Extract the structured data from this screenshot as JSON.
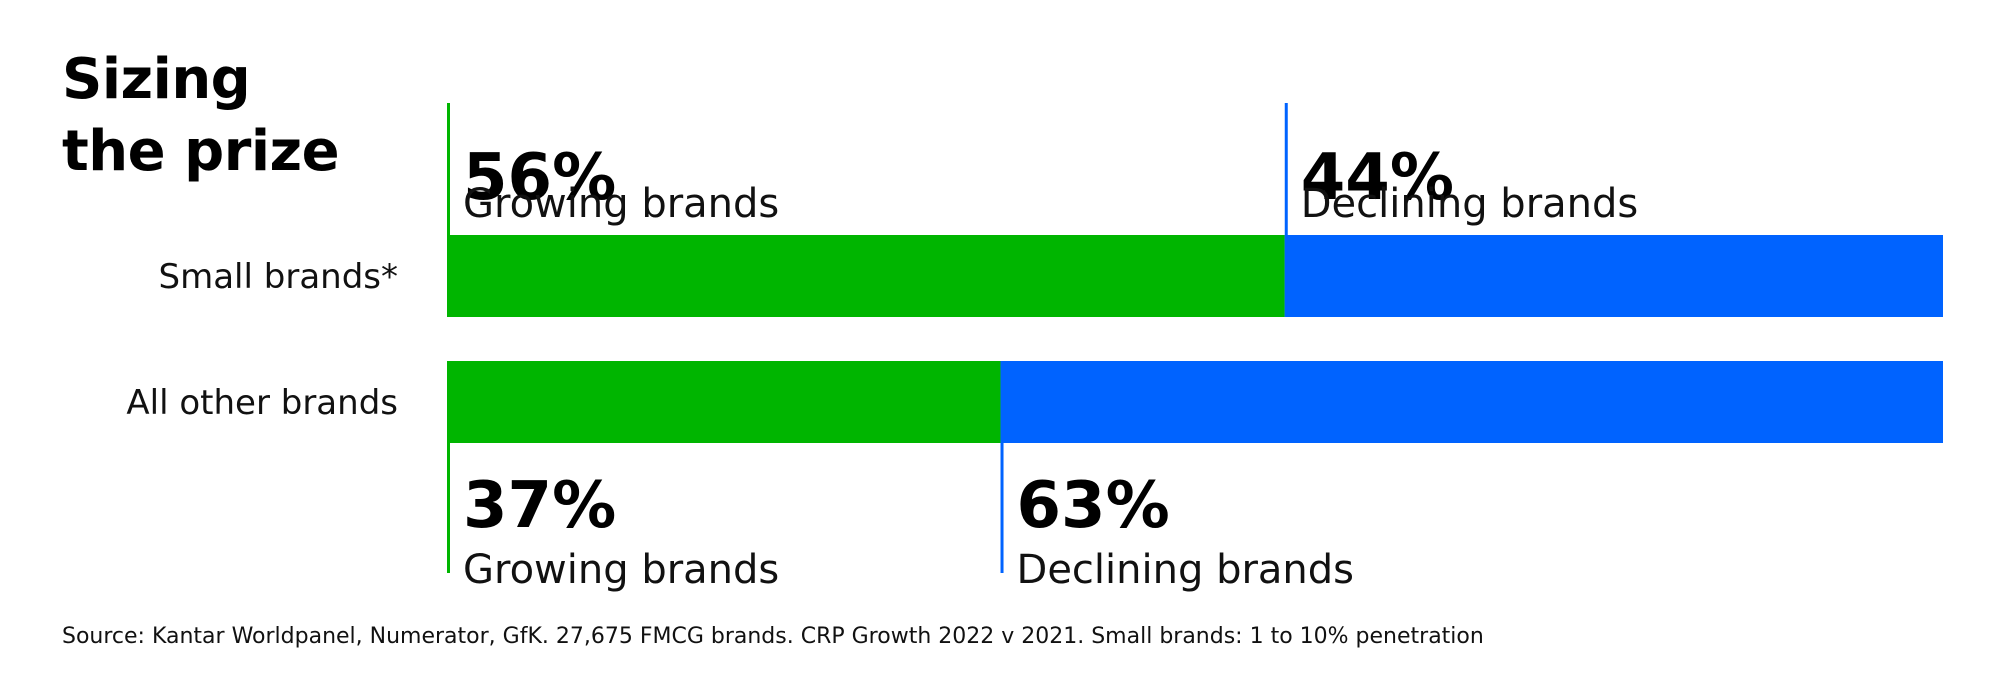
{
  "title": {
    "line1": "Sizing",
    "line2": "the prize"
  },
  "chart_data": {
    "type": "bar",
    "orientation": "horizontal",
    "stacked": true,
    "percent_stacked": true,
    "categories": [
      "Small brands*",
      "All other brands"
    ],
    "series": [
      {
        "name": "Growing brands",
        "values": [
          56,
          37
        ],
        "color": "#00B500"
      },
      {
        "name": "Declining brands",
        "values": [
          44,
          63
        ],
        "color": "#0063FF"
      }
    ],
    "value_labels": [
      [
        "56%",
        "44%"
      ],
      [
        "37%",
        "63%"
      ]
    ],
    "xlim": [
      0,
      100
    ],
    "grid": false,
    "legend": "none"
  },
  "source": "Source: Kantar Worldpanel, Numerator, GfK. 27,675 FMCG brands. CRP Growth 2022 v 2021. Small brands: 1 to 10% penetration"
}
